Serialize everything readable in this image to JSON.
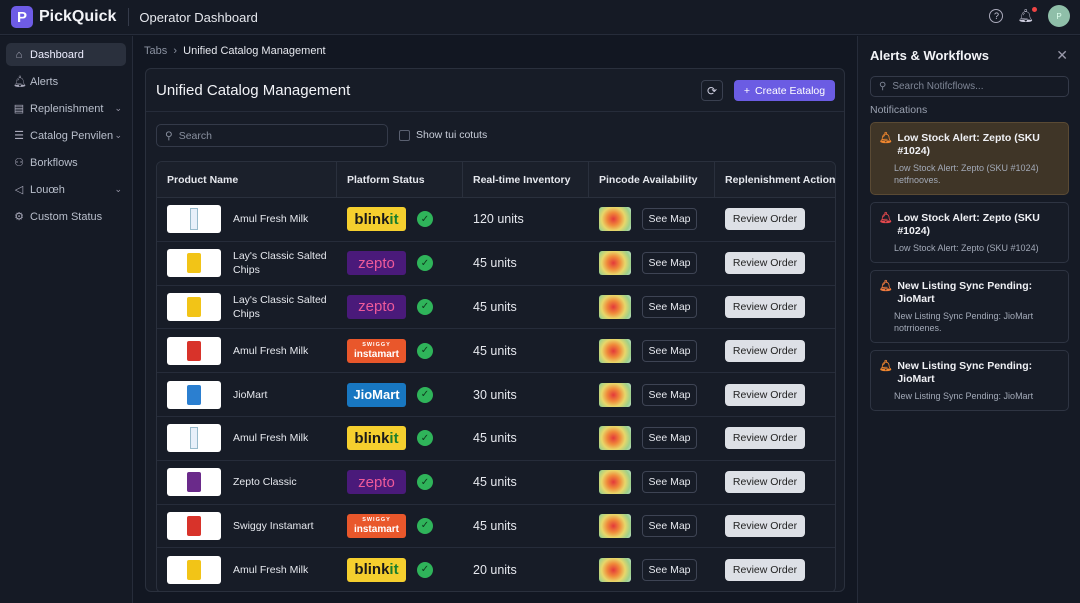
{
  "header": {
    "brand": "PickQuick",
    "logo_letter": "P",
    "title": "Operator Dashboard",
    "avatar": "P",
    "icons": [
      "help-icon",
      "bell-icon"
    ]
  },
  "sidebar": {
    "items": [
      {
        "label": "Dashboard",
        "icon": "home-icon",
        "active": true
      },
      {
        "label": "Alerts",
        "icon": "bell-icon"
      },
      {
        "label": "Replenishment",
        "icon": "document-icon",
        "chevron": true
      },
      {
        "label": "Catalog Penvilen",
        "icon": "list-icon",
        "chevron": true
      },
      {
        "label": "Borkflows",
        "icon": "workflow-icon"
      },
      {
        "label": "Louœh",
        "icon": "megaphone-icon",
        "chevron": true
      },
      {
        "label": "Custom Status",
        "icon": "gear-icon"
      }
    ]
  },
  "breadcrumb": {
    "root": "Tabs",
    "current": "Unified Catalog Management"
  },
  "card": {
    "title": "Unified Catalog Management",
    "create_label": "Create Eatalog",
    "search_placeholder": "Search",
    "checkbox_label": "Show tui cotuts"
  },
  "table": {
    "columns": [
      "Product Name",
      "Platform Status",
      "Real-time Inventory",
      "Pincode Availability",
      "Replenishment Action"
    ],
    "see_map": "See Map",
    "review": "Review Order",
    "rows": [
      {
        "product": "Amul Fresh Milk",
        "thumb": "milk",
        "platform": "blinkit",
        "inventory": "120 units"
      },
      {
        "product": "Lay's Classic Salted Chips",
        "thumb": "chips-yellow",
        "platform": "zepto",
        "inventory": "45 units"
      },
      {
        "product": "Lay's Classic Salted Chips",
        "thumb": "chips-yellow",
        "platform": "zepto",
        "inventory": "45 units"
      },
      {
        "product": "Amul Fresh Milk",
        "thumb": "chips-red",
        "platform": "swiggy",
        "inventory": "45 units"
      },
      {
        "product": "JioMart",
        "thumb": "chips-blue",
        "platform": "jiomart",
        "inventory": "30 units"
      },
      {
        "product": "Amul Fresh Milk",
        "thumb": "milk",
        "platform": "blinkit",
        "inventory": "45 units"
      },
      {
        "product": "Zepto Classic",
        "thumb": "chips-purple",
        "platform": "zepto",
        "inventory": "45 units"
      },
      {
        "product": "Swiggy Instamart",
        "thumb": "chips-red",
        "platform": "swiggy",
        "inventory": "45 units"
      },
      {
        "product": "Amul Fresh Milk",
        "thumb": "chips-yellow",
        "platform": "blinkit",
        "inventory": "20 units"
      }
    ]
  },
  "platforms": {
    "blinkit": {
      "a": "blink",
      "b": "it"
    },
    "zepto": {
      "a": "zepto"
    },
    "swiggy": {
      "a": "SWIGGY",
      "b": "instamart"
    },
    "jiomart": {
      "a": "JioMart"
    }
  },
  "panel": {
    "title": "Alerts & Workflows",
    "search_placeholder": "Search Notifcflows...",
    "section": "Notifications",
    "notifications": [
      {
        "title": "Low Stock Alert: Zepto (SKU #1024)",
        "body": "Low Stock Alert: Zepto (SKU #1024) netfnooves.",
        "color": "#f0862e",
        "highlight": true
      },
      {
        "title": "Low Stock Alert: Zepto (SKU #1024)",
        "body": "Low Stock Alert: Zepto (SKU #1024)",
        "color": "#e5484d"
      },
      {
        "title": "New Listing Sync Pending: JioMart",
        "body": "New Listing Sync Pending: JioMart notrrioenes.",
        "color": "#f07a3e"
      },
      {
        "title": "New Listing Sync Pending: JioMart",
        "body": "New Listing Sync Pending: JioMart",
        "color": "#f0862e"
      }
    ]
  },
  "colors": {
    "accent": "#6b5ce3",
    "ok": "#2fb45a"
  }
}
